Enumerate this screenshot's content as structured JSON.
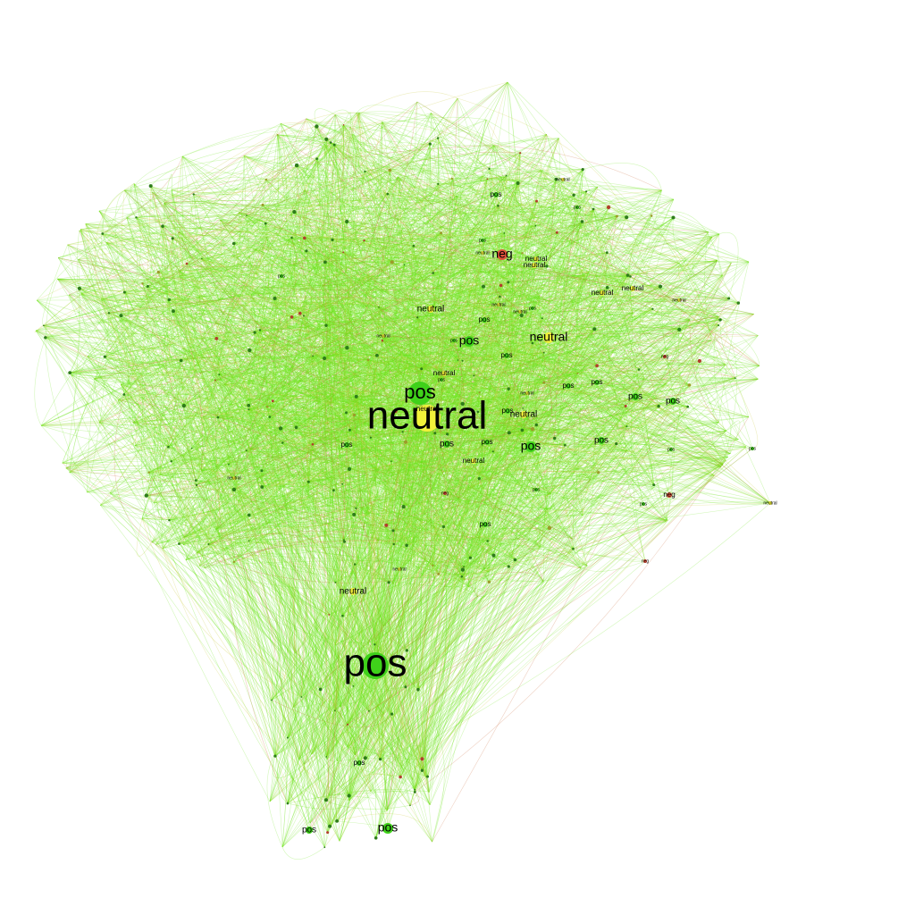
{
  "colors": {
    "background": "#ffffff",
    "pos": "#3fd11a",
    "neutral": "#f2f23a",
    "neg": "#e0503a",
    "edge_green": "#6ee61c",
    "edge_olive": "#c8c832",
    "edge_red": "#c86432",
    "label": "#000000"
  },
  "sentiments": [
    "pos",
    "neutral",
    "neg"
  ],
  "nodes": [
    {
      "id": "n1",
      "label": "neutral",
      "sentiment": "neutral",
      "rank": 1
    },
    {
      "id": "n2",
      "label": "pos",
      "sentiment": "pos",
      "rank": 1
    },
    {
      "id": "n3",
      "label": "pos",
      "sentiment": "pos",
      "rank": 2
    },
    {
      "id": "n4",
      "label": "pos",
      "sentiment": "pos",
      "rank": 3
    },
    {
      "id": "n5",
      "label": "pos",
      "sentiment": "pos",
      "rank": 3
    },
    {
      "id": "n6",
      "label": "neg",
      "sentiment": "neg",
      "rank": 3
    },
    {
      "id": "n7",
      "label": "pos",
      "sentiment": "pos",
      "rank": 3
    },
    {
      "id": "n8",
      "label": "neutral",
      "sentiment": "neutral",
      "rank": 3
    },
    {
      "id": "n9",
      "label": "pos",
      "sentiment": "pos",
      "rank": 4
    },
    {
      "id": "n10",
      "label": "neutral",
      "sentiment": "neutral",
      "rank": 4
    },
    {
      "id": "n11",
      "label": "pos",
      "sentiment": "pos",
      "rank": 4
    },
    {
      "id": "n12",
      "label": "neutral",
      "sentiment": "neutral",
      "rank": 4
    },
    {
      "id": "n13",
      "label": "pos",
      "sentiment": "pos",
      "rank": 4
    },
    {
      "id": "n14",
      "label": "pos",
      "sentiment": "pos",
      "rank": 4
    },
    {
      "id": "n15",
      "label": "neutral",
      "sentiment": "neutral",
      "rank": 4
    },
    {
      "id": "n16",
      "label": "pos",
      "sentiment": "pos",
      "rank": 4
    },
    {
      "id": "n17",
      "label": "neutral",
      "sentiment": "neutral",
      "rank": 5
    },
    {
      "id": "n18",
      "label": "neutral",
      "sentiment": "neutral",
      "rank": 5
    },
    {
      "id": "n19",
      "label": "neutral",
      "sentiment": "neutral",
      "rank": 5
    },
    {
      "id": "n20",
      "label": "neutral",
      "sentiment": "neutral",
      "rank": 5
    },
    {
      "id": "n21",
      "label": "neutral",
      "sentiment": "neutral",
      "rank": 5
    },
    {
      "id": "n22",
      "label": "pos",
      "sentiment": "pos",
      "rank": 5
    },
    {
      "id": "n23",
      "label": "pos",
      "sentiment": "pos",
      "rank": 5
    },
    {
      "id": "n24",
      "label": "pos",
      "sentiment": "pos",
      "rank": 5
    },
    {
      "id": "n25",
      "label": "pos",
      "sentiment": "pos",
      "rank": 5
    },
    {
      "id": "n26",
      "label": "pos",
      "sentiment": "pos",
      "rank": 5
    },
    {
      "id": "n27",
      "label": "pos",
      "sentiment": "pos",
      "rank": 5
    },
    {
      "id": "n28",
      "label": "pos",
      "sentiment": "pos",
      "rank": 5
    },
    {
      "id": "n29",
      "label": "pos",
      "sentiment": "pos",
      "rank": 5
    },
    {
      "id": "n30",
      "label": "pos",
      "sentiment": "pos",
      "rank": 5
    },
    {
      "id": "n31",
      "label": "pos",
      "sentiment": "pos",
      "rank": 5
    },
    {
      "id": "n32",
      "label": "neg",
      "sentiment": "neg",
      "rank": 5
    },
    {
      "id": "n33",
      "label": "neutral",
      "sentiment": "neutral",
      "rank": 5
    },
    {
      "id": "n34",
      "label": "neutral",
      "sentiment": "neutral",
      "rank": 5
    },
    {
      "id": "n35",
      "label": "pos",
      "sentiment": "pos",
      "rank": 6
    },
    {
      "id": "n36",
      "label": "neutral",
      "sentiment": "neutral",
      "rank": 6
    },
    {
      "id": "n37",
      "label": "pos",
      "sentiment": "pos",
      "rank": 6
    },
    {
      "id": "n38",
      "label": "neutral",
      "sentiment": "neutral",
      "rank": 6
    },
    {
      "id": "n39",
      "label": "pos",
      "sentiment": "pos",
      "rank": 6
    },
    {
      "id": "n40",
      "label": "pos",
      "sentiment": "pos",
      "rank": 6
    },
    {
      "id": "n41",
      "label": "neg",
      "sentiment": "neg",
      "rank": 6
    },
    {
      "id": "n42",
      "label": "neg",
      "sentiment": "neg",
      "rank": 6
    },
    {
      "id": "n43",
      "label": "neg",
      "sentiment": "neg",
      "rank": 6
    },
    {
      "id": "n44",
      "label": "pos",
      "sentiment": "pos",
      "rank": 6
    },
    {
      "id": "n45",
      "label": "neutral",
      "sentiment": "neutral",
      "rank": 6
    },
    {
      "id": "n46",
      "label": "pos",
      "sentiment": "pos",
      "rank": 6
    },
    {
      "id": "n47",
      "label": "pos",
      "sentiment": "pos",
      "rank": 6
    },
    {
      "id": "n48",
      "label": "pos",
      "sentiment": "pos",
      "rank": 6
    },
    {
      "id": "n49",
      "label": "pos",
      "sentiment": "pos",
      "rank": 6
    },
    {
      "id": "n50",
      "label": "neutral",
      "sentiment": "neutral",
      "rank": 6
    },
    {
      "id": "n51",
      "label": "neutral",
      "sentiment": "neutral",
      "rank": 6
    },
    {
      "id": "n52",
      "label": "neutral",
      "sentiment": "neutral",
      "rank": 6
    },
    {
      "id": "n53",
      "label": "neutral",
      "sentiment": "neutral",
      "rank": 6
    },
    {
      "id": "n54",
      "label": "neutral",
      "sentiment": "neutral",
      "rank": 6
    },
    {
      "id": "n55",
      "label": "pos",
      "sentiment": "pos",
      "rank": 6
    },
    {
      "id": "n56",
      "label": "neutral",
      "sentiment": "neutral",
      "rank": 6
    },
    {
      "id": "n57",
      "label": "neutral",
      "sentiment": "neutral",
      "rank": 6
    }
  ]
}
